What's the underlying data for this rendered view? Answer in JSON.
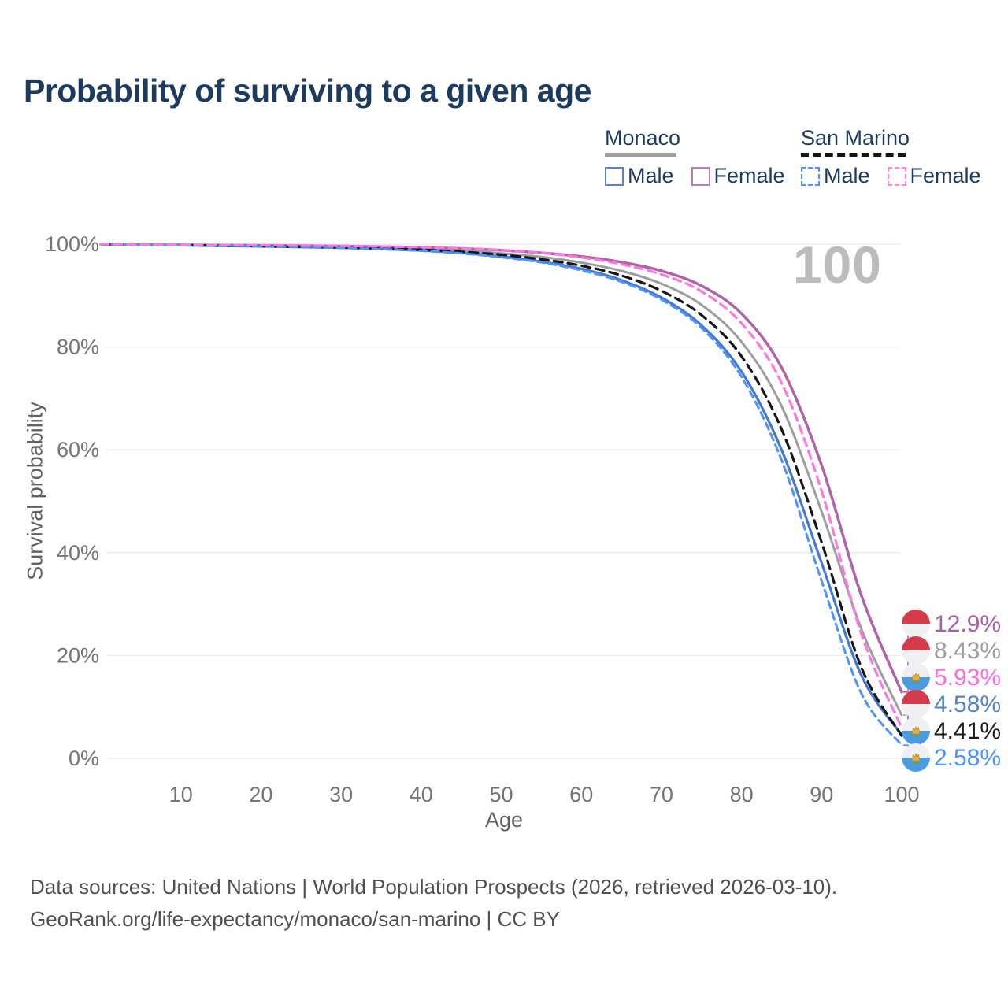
{
  "title": "Probability of surviving to a given age",
  "watermark": "100",
  "colors": {
    "title_text": "#1d3b5e",
    "axis_tick_text": "#757575",
    "axis_title_text": "#616161",
    "gridline": "#eaeaea",
    "watermark_text": "#bcbcbc",
    "footer_text": "#505050",
    "monaco_female": "#b163a8",
    "monaco_male": "#4479cf",
    "monaco_both": "#9e9e9e",
    "san_marino_female": "#ff78e2",
    "san_marino_male": "#4d94ff",
    "san_marino_both": "#161616",
    "monaco_flag_red": "#d63b4b",
    "san_marino_flag_blue": "#4a9bdf"
  },
  "legend": {
    "groups": [
      {
        "name": "Monaco",
        "underline_style": "width:91px;background:#9e9e9e",
        "items": [
          {
            "label": "Male",
            "swatch_style": "border:2.5px solid #5b84c4"
          },
          {
            "label": "Female",
            "swatch_style": "border:2.5px solid #bf7cb6"
          }
        ]
      },
      {
        "name": "San Marino",
        "underline_style": "width:133px;height:0;border-bottom:5px dashed #141414",
        "items": [
          {
            "label": "Male",
            "swatch_style": "border:2.5px dashed #4d94ff"
          },
          {
            "label": "Female",
            "swatch_style": "border:2.5px dashed #ff85e6"
          }
        ]
      }
    ]
  },
  "footer": {
    "line1": "Data sources: United Nations | World Population Prospects (2026, retrieved 2026-03-10).",
    "line2": "GeoRank.org/life-expectancy/monaco/san-marino | CC BY"
  },
  "chart_data": {
    "type": "line",
    "title": "Probability of surviving to a given age",
    "xlabel": "Age",
    "ylabel": "Survival probability",
    "xlim": [
      0,
      100
    ],
    "ylim": [
      0,
      100
    ],
    "grid": "horizontal",
    "legend_position": "top-right",
    "age_marker": "100",
    "x_ticks": [
      10,
      20,
      30,
      40,
      50,
      60,
      70,
      80,
      90,
      100
    ],
    "y_ticks": [
      {
        "value": 0,
        "label": "0%"
      },
      {
        "value": 20,
        "label": "20%"
      },
      {
        "value": 40,
        "label": "40%"
      },
      {
        "value": 60,
        "label": "60%"
      },
      {
        "value": 80,
        "label": "80%"
      },
      {
        "value": 100,
        "label": "100%"
      }
    ],
    "ages": [
      0,
      5,
      10,
      15,
      20,
      25,
      30,
      35,
      40,
      45,
      50,
      55,
      60,
      65,
      70,
      75,
      80,
      85,
      90,
      95,
      100
    ],
    "series": [
      {
        "id": "monaco-both",
        "name": "Monaco — Both sexes",
        "country": "Monaco",
        "sex": "Both",
        "color": "#9e9e9e",
        "dash": null,
        "width": 3,
        "flag": "monaco",
        "end_label": "8.43%",
        "end_label_color": "#9e9e9e",
        "values": [
          100,
          99.87,
          99.8,
          99.72,
          99.62,
          99.52,
          99.42,
          99.25,
          99.05,
          98.72,
          98.2,
          97.5,
          96.4,
          94.8,
          92.3,
          88.2,
          81.0,
          68.5,
          48.0,
          25.0,
          8.43
        ]
      },
      {
        "id": "monaco-male",
        "name": "Monaco — Male",
        "country": "Monaco",
        "sex": "Male",
        "color": "#4479cf",
        "dash": null,
        "width": 3.2,
        "flag": "monaco",
        "end_label": "4.58%",
        "end_label_color": "#5583c0",
        "values": [
          100,
          99.85,
          99.78,
          99.68,
          99.55,
          99.42,
          99.28,
          99.05,
          98.75,
          98.3,
          97.6,
          96.6,
          95.2,
          93.0,
          89.6,
          84.2,
          75.2,
          60.0,
          38.0,
          16.0,
          4.58
        ]
      },
      {
        "id": "monaco-female",
        "name": "Monaco — Female",
        "country": "Monaco",
        "sex": "Female",
        "color": "#b163a8",
        "dash": null,
        "width": 3.5,
        "flag": "monaco",
        "end_label": "12.9%",
        "end_label_color": "#a661a6",
        "values": [
          100,
          99.9,
          99.85,
          99.8,
          99.75,
          99.7,
          99.6,
          99.5,
          99.35,
          99.15,
          98.8,
          98.3,
          97.6,
          96.5,
          94.8,
          91.9,
          86.5,
          76.0,
          57.0,
          31.5,
          12.9
        ]
      },
      {
        "id": "san-marino-both",
        "name": "San Marino — Both sexes",
        "country": "San Marino",
        "sex": "Both",
        "color": "#161616",
        "dash": "11 7",
        "width": 3.2,
        "flag": "san-marino",
        "end_label": "4.41%",
        "end_label_color": "#1a1a1a",
        "values": [
          100,
          99.87,
          99.8,
          99.7,
          99.6,
          99.48,
          99.35,
          99.15,
          98.9,
          98.5,
          97.95,
          97.05,
          95.8,
          93.9,
          90.9,
          86.2,
          78.2,
          64.0,
          42.0,
          17.5,
          4.41
        ]
      },
      {
        "id": "san-marino-male",
        "name": "San Marino — Male",
        "country": "San Marino",
        "sex": "Male",
        "color": "#4d94ff",
        "dash": "9 6",
        "width": 3,
        "flag": "san-marino",
        "end_label": "2.58%",
        "end_label_color": "#4d94ff",
        "values": [
          100,
          99.88,
          99.8,
          99.7,
          99.58,
          99.44,
          99.26,
          99.02,
          98.7,
          98.2,
          97.45,
          96.45,
          94.9,
          92.7,
          89.2,
          83.7,
          74.2,
          58.0,
          34.5,
          12.5,
          2.58
        ]
      },
      {
        "id": "san-marino-female",
        "name": "San Marino — Female",
        "country": "San Marino",
        "sex": "Female",
        "color": "#ff78e2",
        "dash": "10 7",
        "width": 3.2,
        "flag": "san-marino",
        "end_label": "5.93%",
        "end_label_color": "#ff6ce1",
        "values": [
          100,
          99.92,
          99.88,
          99.84,
          99.8,
          99.74,
          99.66,
          99.55,
          99.4,
          99.2,
          98.85,
          98.3,
          97.4,
          96.1,
          94.1,
          90.8,
          84.6,
          73.0,
          52.0,
          24.0,
          5.93
        ]
      }
    ]
  }
}
